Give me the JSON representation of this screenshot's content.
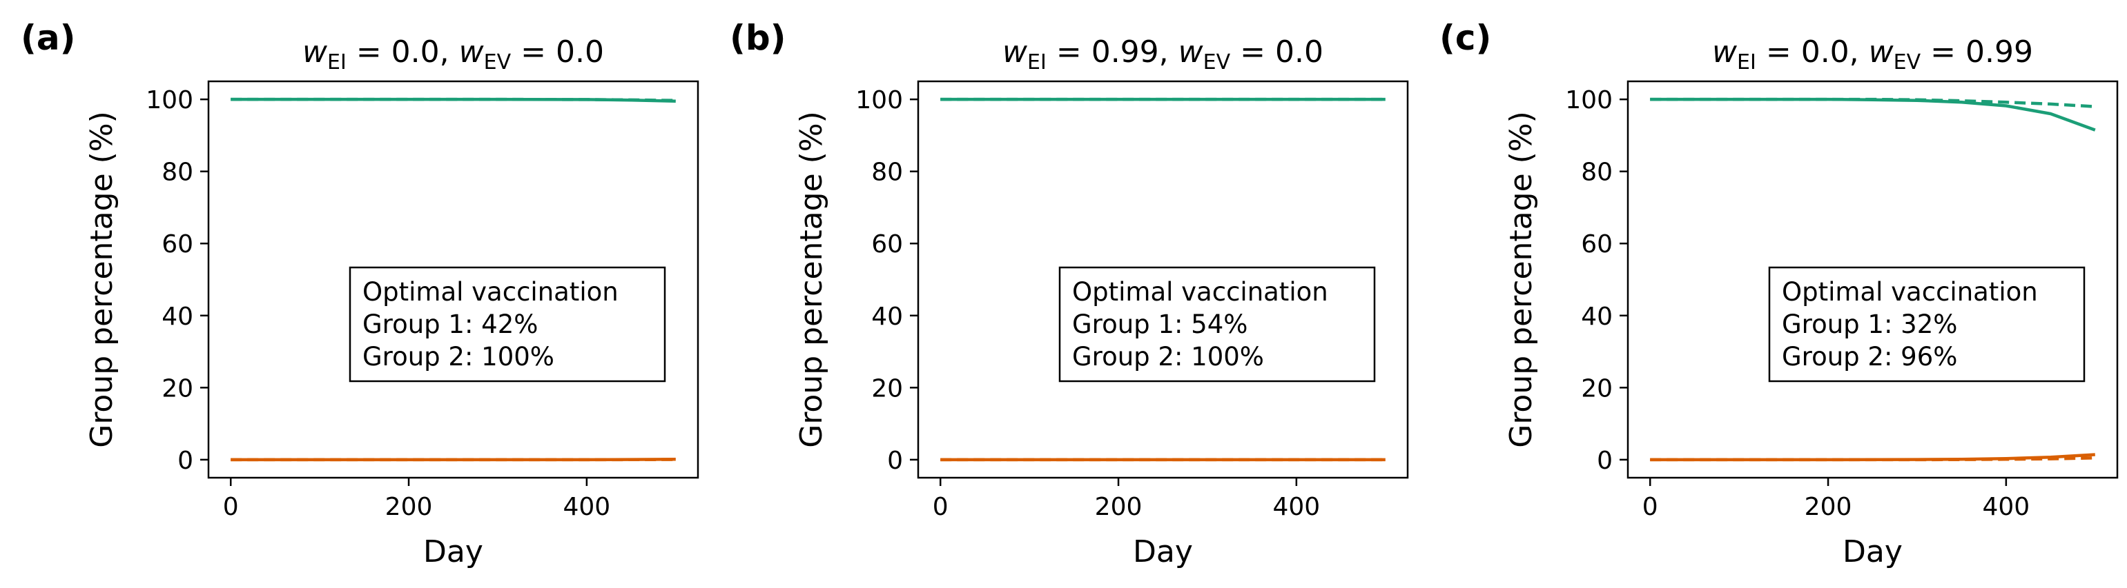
{
  "figure": {
    "panels": [
      {
        "letter": "(a)",
        "title_a": "0.0",
        "title_b": "0.0",
        "box": {
          "heading": "Optimal vaccination",
          "line1": "Group 1: 42%",
          "line2": "Group 2: 100%"
        }
      },
      {
        "letter": "(b)",
        "title_a": "0.99",
        "title_b": "0.0",
        "box": {
          "heading": "Optimal vaccination",
          "line1": "Group 1: 54%",
          "line2": "Group 2: 100%"
        }
      },
      {
        "letter": "(c)",
        "title_a": "0.0",
        "title_b": "0.99",
        "box": {
          "heading": "Optimal vaccination",
          "line1": "Group 1: 32%",
          "line2": "Group 2: 96%"
        }
      }
    ],
    "title_var": "w",
    "title_sub1": "EI",
    "title_sub2": "EV",
    "title_eq": " = ",
    "title_sep": ", "
  },
  "colors": {
    "green": "#1b9e77",
    "orange": "#d95f02"
  },
  "chart_data": [
    {
      "type": "line",
      "xlabel": "Day",
      "ylabel": "Group percentage (%)",
      "xlim": [
        -25,
        525
      ],
      "ylim": [
        -5,
        105
      ],
      "xticks": [
        0,
        200,
        400
      ],
      "yticks": [
        0,
        20,
        40,
        60,
        80,
        100
      ],
      "grid": false,
      "series": [
        {
          "color": "#1b9e77",
          "style": "solid",
          "x": [
            0,
            100,
            200,
            300,
            400,
            450,
            500
          ],
          "y": [
            100,
            100,
            100,
            100,
            99.95,
            99.8,
            99.5
          ]
        },
        {
          "color": "#1b9e77",
          "style": "dashed",
          "x": [
            0,
            100,
            200,
            300,
            400,
            450,
            500
          ],
          "y": [
            100,
            100,
            100,
            100,
            99.95,
            99.85,
            99.7
          ]
        },
        {
          "color": "#d95f02",
          "style": "solid",
          "x": [
            0,
            100,
            200,
            300,
            400,
            450,
            500
          ],
          "y": [
            0,
            0,
            0,
            0,
            0,
            0.05,
            0.1
          ]
        },
        {
          "color": "#d95f02",
          "style": "dashed",
          "x": [
            0,
            100,
            200,
            300,
            400,
            450,
            500
          ],
          "y": [
            0,
            0,
            0,
            0,
            0,
            0.02,
            0.05
          ]
        }
      ]
    },
    {
      "type": "line",
      "xlabel": "Day",
      "ylabel": "Group percentage (%)",
      "xlim": [
        -25,
        525
      ],
      "ylim": [
        -5,
        105
      ],
      "xticks": [
        0,
        200,
        400
      ],
      "yticks": [
        0,
        20,
        40,
        60,
        80,
        100
      ],
      "grid": false,
      "series": [
        {
          "color": "#1b9e77",
          "style": "solid",
          "x": [
            0,
            100,
            200,
            300,
            400,
            500
          ],
          "y": [
            100,
            100,
            100,
            100,
            100,
            100
          ]
        },
        {
          "color": "#1b9e77",
          "style": "dashed",
          "x": [
            0,
            100,
            200,
            300,
            400,
            500
          ],
          "y": [
            100,
            100,
            100,
            100,
            100,
            100
          ]
        },
        {
          "color": "#d95f02",
          "style": "solid",
          "x": [
            0,
            100,
            200,
            300,
            400,
            500
          ],
          "y": [
            0,
            0,
            0,
            0,
            0,
            0
          ]
        },
        {
          "color": "#d95f02",
          "style": "dashed",
          "x": [
            0,
            100,
            200,
            300,
            400,
            500
          ],
          "y": [
            0,
            0,
            0,
            0,
            0,
            0
          ]
        }
      ]
    },
    {
      "type": "line",
      "xlabel": "Day",
      "ylabel": "Group percentage (%)",
      "xlim": [
        -25,
        525
      ],
      "ylim": [
        -5,
        105
      ],
      "xticks": [
        0,
        200,
        400
      ],
      "yticks": [
        0,
        20,
        40,
        60,
        80,
        100
      ],
      "grid": false,
      "series": [
        {
          "color": "#1b9e77",
          "style": "solid",
          "x": [
            0,
            100,
            200,
            250,
            300,
            350,
            400,
            450,
            500
          ],
          "y": [
            100,
            100,
            100,
            99.9,
            99.7,
            99.2,
            98.2,
            96,
            91.5
          ]
        },
        {
          "color": "#1b9e77",
          "style": "dashed",
          "x": [
            0,
            100,
            200,
            250,
            300,
            350,
            400,
            450,
            500
          ],
          "y": [
            100,
            100,
            100,
            100,
            99.9,
            99.6,
            99.2,
            98.7,
            98
          ]
        },
        {
          "color": "#d95f02",
          "style": "solid",
          "x": [
            0,
            100,
            200,
            300,
            350,
            400,
            450,
            500
          ],
          "y": [
            0,
            0,
            0,
            0.05,
            0.1,
            0.3,
            0.7,
            1.4
          ]
        },
        {
          "color": "#d95f02",
          "style": "dashed",
          "x": [
            0,
            100,
            200,
            300,
            350,
            400,
            450,
            500
          ],
          "y": [
            0,
            0,
            0,
            0,
            0.03,
            0.1,
            0.25,
            0.5
          ]
        }
      ]
    }
  ]
}
